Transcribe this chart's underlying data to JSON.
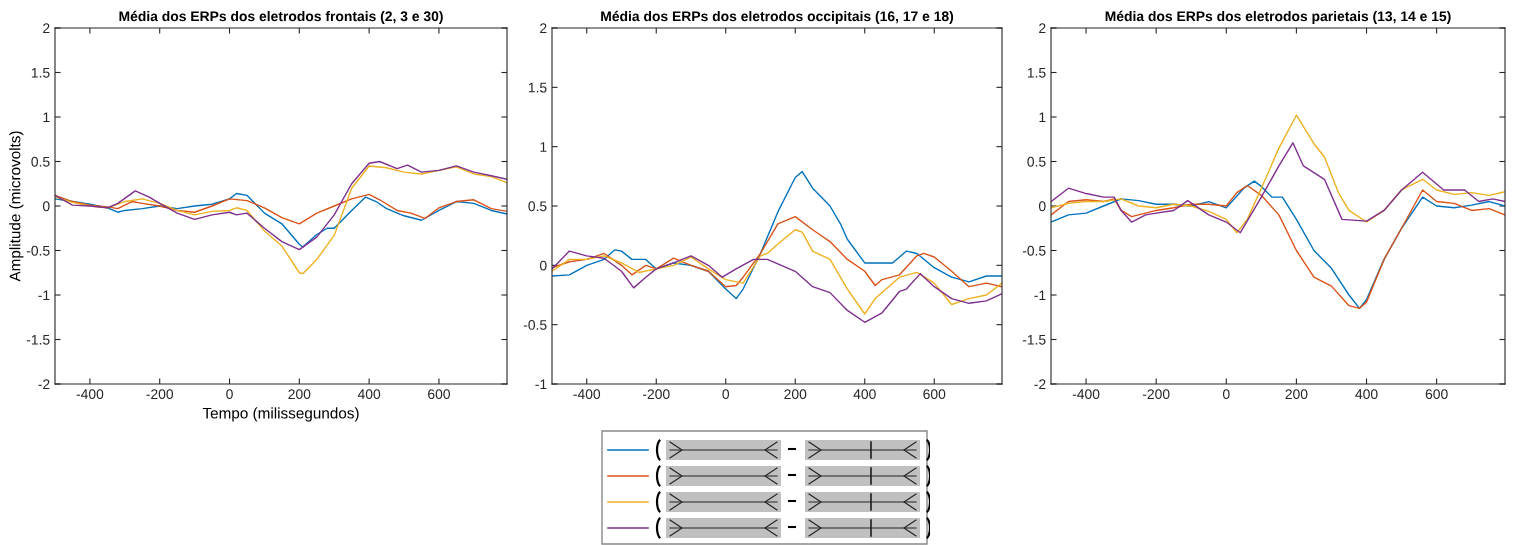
{
  "chart_data": [
    {
      "type": "line",
      "title": "Média dos ERPs dos eletrodos frontais (2, 3 e 30)",
      "xlabel": "Tempo (milissegundos)",
      "ylabel": "Amplitude (microvolts)",
      "xlim": [
        -500,
        795
      ],
      "ylim": [
        -2,
        2
      ],
      "xticks": [
        -400,
        -200,
        0,
        200,
        400,
        600
      ],
      "yticks": [
        -2,
        -1.5,
        -1,
        -0.5,
        0,
        0.5,
        1,
        1.5,
        2
      ],
      "series": [
        {
          "color": "#0072bd",
          "x": [
            -500,
            -450,
            -400,
            -350,
            -320,
            -300,
            -250,
            -200,
            -150,
            -100,
            -50,
            0,
            20,
            50,
            100,
            150,
            200,
            210,
            250,
            280,
            300,
            350,
            390,
            420,
            450,
            500,
            550,
            600,
            650,
            700,
            750,
            795
          ],
          "values": [
            0.08,
            0.05,
            0.02,
            -0.02,
            -0.07,
            -0.05,
            -0.03,
            0.0,
            -0.03,
            0.0,
            0.02,
            0.08,
            0.14,
            0.12,
            -0.08,
            -0.2,
            -0.43,
            -0.46,
            -0.32,
            -0.25,
            -0.25,
            -0.05,
            0.1,
            0.05,
            -0.03,
            -0.11,
            -0.16,
            -0.05,
            0.05,
            0.03,
            -0.05,
            -0.09
          ]
        },
        {
          "color": "#d95319",
          "x": [
            -500,
            -450,
            -400,
            -350,
            -320,
            -280,
            -250,
            -200,
            -150,
            -100,
            -50,
            0,
            50,
            100,
            150,
            200,
            250,
            300,
            350,
            400,
            430,
            480,
            520,
            560,
            600,
            650,
            700,
            750,
            795
          ],
          "values": [
            0.12,
            0.05,
            0.01,
            -0.01,
            -0.03,
            0.05,
            0.03,
            0.0,
            -0.05,
            -0.07,
            0.0,
            0.08,
            0.06,
            -0.02,
            -0.13,
            -0.2,
            -0.08,
            0.0,
            0.08,
            0.13,
            0.07,
            -0.05,
            -0.08,
            -0.14,
            -0.02,
            0.05,
            0.07,
            -0.03,
            -0.06
          ]
        },
        {
          "color": "#edb120",
          "x": [
            -500,
            -450,
            -400,
            -350,
            -300,
            -250,
            -200,
            -150,
            -100,
            -50,
            0,
            20,
            50,
            100,
            150,
            200,
            210,
            250,
            300,
            350,
            400,
            450,
            500,
            550,
            600,
            650,
            700,
            750,
            795
          ],
          "values": [
            0.1,
            0.04,
            0.0,
            -0.02,
            0.05,
            0.08,
            0.03,
            -0.05,
            -0.1,
            -0.06,
            -0.05,
            -0.02,
            -0.05,
            -0.28,
            -0.45,
            -0.75,
            -0.76,
            -0.6,
            -0.33,
            0.2,
            0.45,
            0.43,
            0.38,
            0.36,
            0.4,
            0.44,
            0.36,
            0.33,
            0.26
          ]
        },
        {
          "color": "#7e2f8e",
          "x": [
            -500,
            -450,
            -400,
            -350,
            -320,
            -270,
            -230,
            -200,
            -150,
            -100,
            -50,
            0,
            20,
            50,
            100,
            150,
            200,
            250,
            300,
            350,
            400,
            430,
            480,
            510,
            550,
            600,
            650,
            700,
            750,
            795
          ],
          "values": [
            0.12,
            0.01,
            0.0,
            -0.02,
            0.03,
            0.17,
            0.1,
            0.03,
            -0.08,
            -0.15,
            -0.1,
            -0.07,
            -0.1,
            -0.08,
            -0.25,
            -0.4,
            -0.49,
            -0.35,
            -0.1,
            0.25,
            0.48,
            0.5,
            0.42,
            0.46,
            0.38,
            0.4,
            0.45,
            0.38,
            0.34,
            0.3
          ]
        }
      ]
    },
    {
      "type": "line",
      "title": "Média dos ERPs dos eletrodos occipitais (16, 17 e 18)",
      "xlim": [
        -500,
        795
      ],
      "ylim": [
        -1,
        2
      ],
      "xticks": [
        -400,
        -200,
        0,
        200,
        400,
        600
      ],
      "yticks": [
        -1,
        -0.5,
        0,
        0.5,
        1,
        1.5,
        2
      ],
      "series": [
        {
          "color": "#0072bd",
          "x": [
            -500,
            -450,
            -400,
            -350,
            -320,
            -300,
            -270,
            -230,
            -200,
            -150,
            -100,
            -50,
            0,
            30,
            50,
            100,
            150,
            200,
            220,
            250,
            300,
            330,
            350,
            400,
            450,
            480,
            520,
            550,
            600,
            650,
            700,
            750,
            795
          ],
          "values": [
            -0.09,
            -0.08,
            0.0,
            0.05,
            0.13,
            0.12,
            0.05,
            0.05,
            -0.03,
            0.02,
            0.0,
            -0.05,
            -0.2,
            -0.28,
            -0.2,
            0.1,
            0.45,
            0.74,
            0.79,
            0.65,
            0.5,
            0.35,
            0.22,
            0.02,
            0.02,
            0.02,
            0.12,
            0.1,
            -0.02,
            -0.1,
            -0.14,
            -0.09,
            -0.09
          ]
        },
        {
          "color": "#d95319",
          "x": [
            -500,
            -450,
            -400,
            -350,
            -300,
            -270,
            -230,
            -200,
            -150,
            -100,
            -50,
            0,
            30,
            50,
            100,
            150,
            200,
            250,
            300,
            350,
            400,
            430,
            450,
            500,
            550,
            570,
            600,
            650,
            700,
            750,
            795
          ],
          "values": [
            -0.02,
            0.03,
            0.05,
            0.1,
            0.0,
            -0.08,
            0.0,
            -0.03,
            0.06,
            0.0,
            -0.05,
            -0.18,
            -0.17,
            -0.1,
            0.1,
            0.35,
            0.41,
            0.3,
            0.2,
            0.05,
            -0.05,
            -0.17,
            -0.12,
            -0.08,
            0.08,
            0.1,
            0.07,
            -0.05,
            -0.18,
            -0.15,
            -0.18
          ]
        },
        {
          "color": "#edb120",
          "x": [
            -500,
            -450,
            -400,
            -350,
            -300,
            -250,
            -200,
            -150,
            -100,
            -50,
            0,
            50,
            100,
            120,
            150,
            200,
            220,
            250,
            300,
            350,
            400,
            430,
            500,
            550,
            600,
            650,
            700,
            750,
            795
          ],
          "values": [
            -0.05,
            0.05,
            0.05,
            0.08,
            0.02,
            -0.06,
            -0.03,
            0.0,
            0.07,
            -0.03,
            -0.12,
            -0.15,
            0.08,
            0.1,
            0.18,
            0.3,
            0.28,
            0.12,
            0.05,
            -0.2,
            -0.41,
            -0.28,
            -0.1,
            -0.06,
            -0.15,
            -0.33,
            -0.28,
            -0.25,
            -0.15
          ]
        },
        {
          "color": "#7e2f8e",
          "x": [
            -500,
            -450,
            -400,
            -350,
            -300,
            -265,
            -230,
            -200,
            -150,
            -100,
            -50,
            -10,
            30,
            80,
            120,
            200,
            250,
            300,
            350,
            400,
            450,
            500,
            520,
            560,
            600,
            650,
            700,
            750,
            795
          ],
          "values": [
            -0.03,
            0.12,
            0.08,
            0.06,
            -0.05,
            -0.19,
            -0.1,
            -0.03,
            0.02,
            0.08,
            0.0,
            -0.1,
            -0.03,
            0.05,
            0.05,
            -0.05,
            -0.18,
            -0.23,
            -0.38,
            -0.48,
            -0.4,
            -0.22,
            -0.2,
            -0.07,
            -0.18,
            -0.28,
            -0.32,
            -0.3,
            -0.24
          ]
        }
      ]
    },
    {
      "type": "line",
      "title": "Média dos ERPs dos eletrodos parietais (13, 14 e 15)",
      "xlim": [
        -500,
        795
      ],
      "ylim": [
        -2,
        2
      ],
      "xticks": [
        -400,
        -200,
        0,
        200,
        400,
        600
      ],
      "yticks": [
        -2,
        -1.5,
        -1,
        -0.5,
        0,
        0.5,
        1,
        1.5,
        2
      ],
      "series": [
        {
          "color": "#0072bd",
          "x": [
            -500,
            -450,
            -400,
            -350,
            -300,
            -250,
            -200,
            -150,
            -100,
            -50,
            0,
            50,
            80,
            100,
            130,
            160,
            200,
            250,
            300,
            350,
            380,
            400,
            450,
            500,
            560,
            600,
            650,
            700,
            750,
            795
          ],
          "values": [
            -0.18,
            -0.1,
            -0.08,
            0.0,
            0.08,
            0.06,
            0.02,
            0.02,
            0.0,
            0.05,
            -0.02,
            0.2,
            0.28,
            0.22,
            0.1,
            0.1,
            -0.15,
            -0.5,
            -0.7,
            -1.0,
            -1.15,
            -1.05,
            -0.6,
            -0.25,
            0.1,
            0.0,
            -0.02,
            0.01,
            0.05,
            0.0
          ]
        },
        {
          "color": "#d95319",
          "x": [
            -500,
            -450,
            -400,
            -350,
            -320,
            -300,
            -270,
            -200,
            -150,
            -100,
            -50,
            0,
            30,
            60,
            100,
            150,
            200,
            250,
            300,
            350,
            380,
            400,
            450,
            500,
            560,
            600,
            650,
            700,
            750,
            795
          ],
          "values": [
            -0.1,
            0.05,
            0.07,
            0.05,
            0.08,
            -0.05,
            -0.12,
            -0.05,
            -0.02,
            0.02,
            0.02,
            0.0,
            0.15,
            0.23,
            0.12,
            -0.1,
            -0.5,
            -0.8,
            -0.9,
            -1.12,
            -1.15,
            -1.08,
            -0.6,
            -0.25,
            0.18,
            0.05,
            0.03,
            -0.05,
            -0.03,
            -0.1
          ]
        },
        {
          "color": "#edb120",
          "x": [
            -500,
            -450,
            -400,
            -350,
            -300,
            -250,
            -200,
            -150,
            -100,
            -50,
            0,
            30,
            60,
            100,
            150,
            200,
            250,
            280,
            320,
            350,
            400,
            450,
            500,
            560,
            600,
            650,
            700,
            750,
            795
          ],
          "values": [
            -0.02,
            0.03,
            0.05,
            0.05,
            0.08,
            0.0,
            -0.02,
            0.02,
            0.0,
            -0.06,
            -0.15,
            -0.3,
            -0.15,
            0.2,
            0.65,
            1.02,
            0.7,
            0.55,
            0.15,
            -0.05,
            -0.18,
            -0.05,
            0.18,
            0.3,
            0.18,
            0.13,
            0.15,
            0.12,
            0.16
          ]
        },
        {
          "color": "#7e2f8e",
          "x": [
            -500,
            -450,
            -400,
            -350,
            -320,
            -300,
            -270,
            -230,
            -200,
            -150,
            -110,
            -50,
            0,
            40,
            100,
            150,
            190,
            220,
            280,
            330,
            400,
            450,
            500,
            560,
            620,
            680,
            720,
            760,
            795
          ],
          "values": [
            0.05,
            0.2,
            0.14,
            0.1,
            0.1,
            -0.05,
            -0.18,
            -0.1,
            -0.08,
            -0.05,
            0.06,
            -0.1,
            -0.18,
            -0.3,
            0.1,
            0.45,
            0.71,
            0.45,
            0.3,
            -0.15,
            -0.17,
            -0.05,
            0.18,
            0.38,
            0.18,
            0.18,
            0.05,
            0.08,
            0.05
          ]
        }
      ]
    }
  ]
}
